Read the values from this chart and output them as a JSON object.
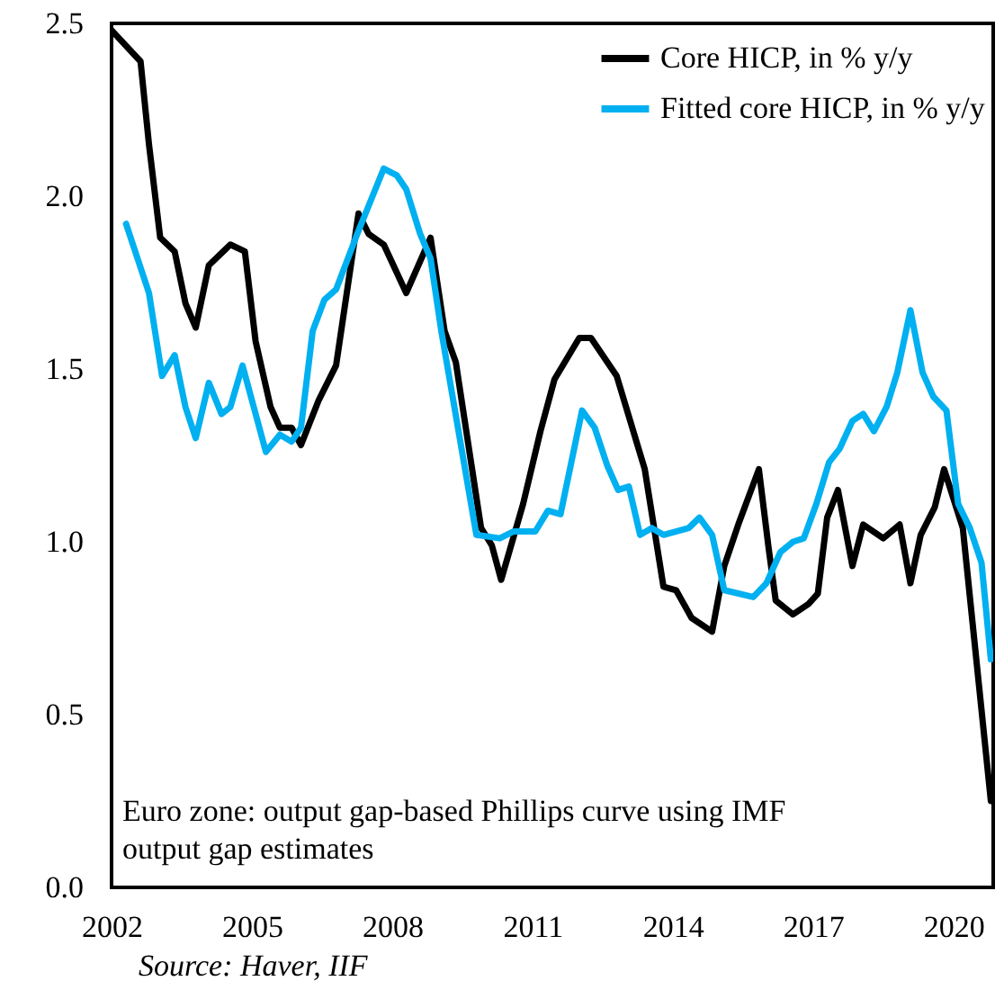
{
  "chart_data": {
    "type": "line",
    "xlim": [
      2002,
      2020.85
    ],
    "xticks": [
      2002,
      2005,
      2008,
      2011,
      2014,
      2017,
      2020
    ],
    "ylim": [
      0,
      2.5
    ],
    "yticks": [
      {
        "value": 0,
        "label": "0.0"
      },
      {
        "value": 0.5,
        "label": "0.5"
      },
      {
        "value": 1,
        "label": "1.0"
      },
      {
        "value": 1.5,
        "label": "1.5"
      },
      {
        "value": 2,
        "label": "2.0"
      },
      {
        "value": 2.5,
        "label": "2.5"
      }
    ],
    "grid": false,
    "legend": "top right",
    "marker": "none",
    "line_style": "solid",
    "annotations": [
      "Euro zone: output gap-based Phillips curve using IMF output gap estimates",
      "Source: Haver, IIF"
    ],
    "series": [
      {
        "name": "Core HICP, in % y/y",
        "color": "#000000",
        "x": [
          2002,
          2002.62,
          2002.8,
          2003.04,
          2003.35,
          2003.58,
          2003.8,
          2004.08,
          2004.54,
          2004.85,
          2005.08,
          2005.4,
          2005.6,
          2005.85,
          2006.05,
          2006.43,
          2006.8,
          2007.28,
          2007.5,
          2007.82,
          2008.3,
          2008.82,
          2009.12,
          2009.36,
          2009.9,
          2010.13,
          2010.33,
          2010.8,
          2011.17,
          2011.47,
          2012.0,
          2012.25,
          2012.8,
          2013.4,
          2013.8,
          2014.07,
          2014.4,
          2014.84,
          2015.1,
          2015.4,
          2015.84,
          2016.05,
          2016.2,
          2016.57,
          2016.9,
          2017.1,
          2017.3,
          2017.53,
          2017.84,
          2018.07,
          2018.5,
          2018.85,
          2019.08,
          2019.3,
          2019.6,
          2019.8,
          2020.2,
          2020.8
        ],
        "values": [
          2.48,
          2.39,
          2.15,
          1.88,
          1.84,
          1.69,
          1.62,
          1.8,
          1.86,
          1.84,
          1.58,
          1.39,
          1.33,
          1.33,
          1.28,
          1.41,
          1.51,
          1.95,
          1.89,
          1.86,
          1.72,
          1.88,
          1.61,
          1.52,
          1.04,
          0.99,
          0.89,
          1.11,
          1.32,
          1.47,
          1.59,
          1.59,
          1.48,
          1.21,
          0.87,
          0.86,
          0.78,
          0.74,
          0.93,
          1.05,
          1.21,
          0.98,
          0.83,
          0.79,
          0.82,
          0.85,
          1.07,
          1.15,
          0.93,
          1.05,
          1.01,
          1.05,
          0.88,
          1.02,
          1.1,
          1.21,
          1.04,
          0.25
        ]
      },
      {
        "name": "Fitted core HICP, in % y/y",
        "color": "#00b0f0",
        "x": [
          2002.31,
          2002.8,
          2003.08,
          2003.35,
          2003.58,
          2003.8,
          2004.08,
          2004.35,
          2004.54,
          2004.8,
          2005.3,
          2005.6,
          2005.85,
          2006.05,
          2006.3,
          2006.55,
          2006.8,
          2007.25,
          2007.82,
          2008.1,
          2008.3,
          2008.6,
          2008.82,
          2009.05,
          2009.8,
          2010.3,
          2010.6,
          2011.06,
          2011.33,
          2011.6,
          2012.06,
          2012.33,
          2012.6,
          2012.83,
          2013.06,
          2013.3,
          2013.55,
          2013.8,
          2014.34,
          2014.57,
          2014.84,
          2015.1,
          2015.72,
          2016.0,
          2016.3,
          2016.57,
          2016.8,
          2017.07,
          2017.34,
          2017.57,
          2017.84,
          2018.07,
          2018.3,
          2018.57,
          2018.8,
          2019.08,
          2019.34,
          2019.57,
          2019.85,
          2020.1,
          2020.35,
          2020.6,
          2020.8
        ],
        "values": [
          1.92,
          1.72,
          1.48,
          1.54,
          1.39,
          1.3,
          1.46,
          1.37,
          1.39,
          1.51,
          1.26,
          1.31,
          1.29,
          1.33,
          1.61,
          1.7,
          1.73,
          1.89,
          2.08,
          2.06,
          2.02,
          1.89,
          1.82,
          1.61,
          1.02,
          1.01,
          1.03,
          1.03,
          1.09,
          1.08,
          1.38,
          1.33,
          1.22,
          1.15,
          1.16,
          1.02,
          1.04,
          1.02,
          1.04,
          1.07,
          1.02,
          0.86,
          0.84,
          0.88,
          0.97,
          1.0,
          1.01,
          1.11,
          1.23,
          1.27,
          1.35,
          1.37,
          1.32,
          1.39,
          1.49,
          1.67,
          1.49,
          1.42,
          1.38,
          1.11,
          1.04,
          0.94,
          0.66
        ]
      }
    ]
  }
}
